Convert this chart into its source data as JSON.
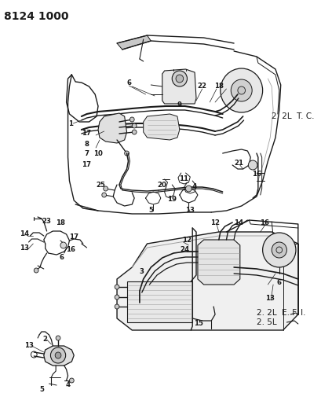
{
  "title": "8124 1000",
  "bg_color": "#ffffff",
  "text_color": "#1a1a1a",
  "gray_light": "#c8c8c8",
  "gray_mid": "#a0a0a0",
  "gray_dark": "#505050",
  "label_top_right_1": "2. 2L  T. C.",
  "label_bot_right_1": "2. 2L  E. F. I.",
  "label_bot_right_2": "2. 5L",
  "fig_width": 4.1,
  "fig_height": 5.33,
  "dpi": 100,
  "title_fontsize": 10,
  "num_fontsize": 6.2,
  "annotation_fontsize": 7.5
}
